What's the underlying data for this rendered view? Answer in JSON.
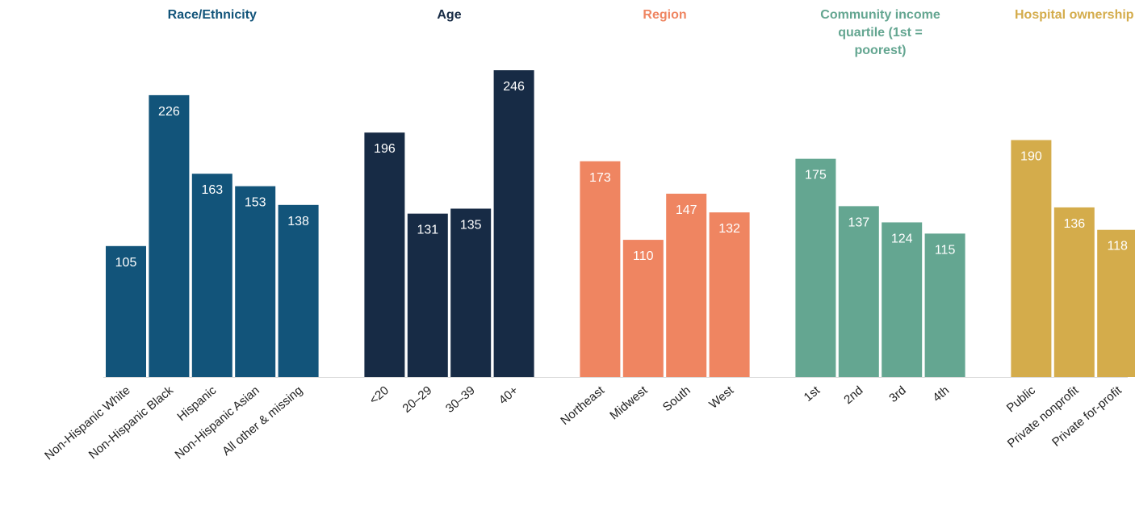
{
  "chart_data": {
    "type": "bar",
    "groups": [
      {
        "name": "Race/Ethnicity",
        "color": "#12547a",
        "title_color": "#12547a",
        "categories": [
          "Non-Hispanic White",
          "Non-Hispanic Black",
          "Hispanic",
          "Non-Hispanic Asian",
          "All other & missing"
        ],
        "values": [
          105,
          226,
          163,
          153,
          138
        ]
      },
      {
        "name": "Age",
        "color": "#172b45",
        "title_color": "#172b45",
        "categories": [
          "<20",
          "20–29",
          "30–39",
          "40+"
        ],
        "values": [
          196,
          131,
          135,
          246
        ]
      },
      {
        "name": "Region",
        "color": "#ef8561",
        "title_color": "#ef8561",
        "categories": [
          "Northeast",
          "Midwest",
          "South",
          "West"
        ],
        "values": [
          173,
          110,
          147,
          132
        ]
      },
      {
        "name": "Community income quartile (1st = poorest)",
        "color": "#64a691",
        "title_color": "#64a691",
        "categories": [
          "1st",
          "2nd",
          "3rd",
          "4th"
        ],
        "values": [
          175,
          137,
          124,
          115
        ]
      },
      {
        "name": "Hospital ownership",
        "color": "#d4ac4b",
        "title_color": "#d4ac4b",
        "categories": [
          "Public",
          "Private nonprofit",
          "Private for-profit"
        ],
        "values": [
          190,
          136,
          118
        ]
      }
    ]
  }
}
